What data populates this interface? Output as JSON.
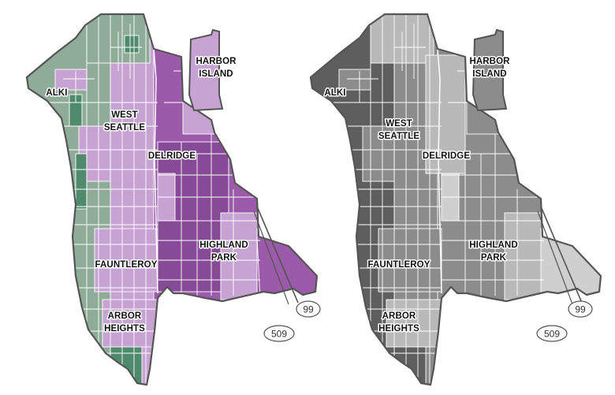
{
  "maps": [
    {
      "id": "color-map",
      "colors": {
        "green": "#8fac99",
        "green_dark": "#4f8a6c",
        "lilac": "#c7a3d3",
        "purple": "#9c5aaa",
        "purple_dark": "#874a96"
      },
      "labels": {
        "harbor_island": [
          "HARBOR",
          "ISLAND"
        ],
        "alki": [
          "ALKI"
        ],
        "west_seattle": [
          "WEST",
          "SEATTLE"
        ],
        "delridge": [
          "DELRIDGE"
        ],
        "highland_park": [
          "HIGHLAND",
          "PARK"
        ],
        "fauntleroy": [
          "FAUNTLEROY"
        ],
        "arbor_heights": [
          "ARBOR",
          "HEIGHTS"
        ]
      },
      "shields": [
        "99",
        "509"
      ]
    },
    {
      "id": "gray-map",
      "colors": {
        "dark": "#5e5e5e",
        "mid": "#8c8c8c",
        "light": "#b9b9b9",
        "pale": "#cfcfcf"
      },
      "labels": {
        "harbor_island": [
          "HARBOR",
          "ISLAND"
        ],
        "alki": [
          "ALKI"
        ],
        "west_seattle": [
          "WEST",
          "SEATTLE"
        ],
        "delridge": [
          "DELRIDGE"
        ],
        "highland_park": [
          "HIGHLAND",
          "PARK"
        ],
        "fauntleroy": [
          "FAUNTLEROY"
        ],
        "arbor_heights": [
          "ARBOR",
          "HEIGHTS"
        ]
      },
      "shields": [
        "99",
        "509"
      ]
    }
  ]
}
